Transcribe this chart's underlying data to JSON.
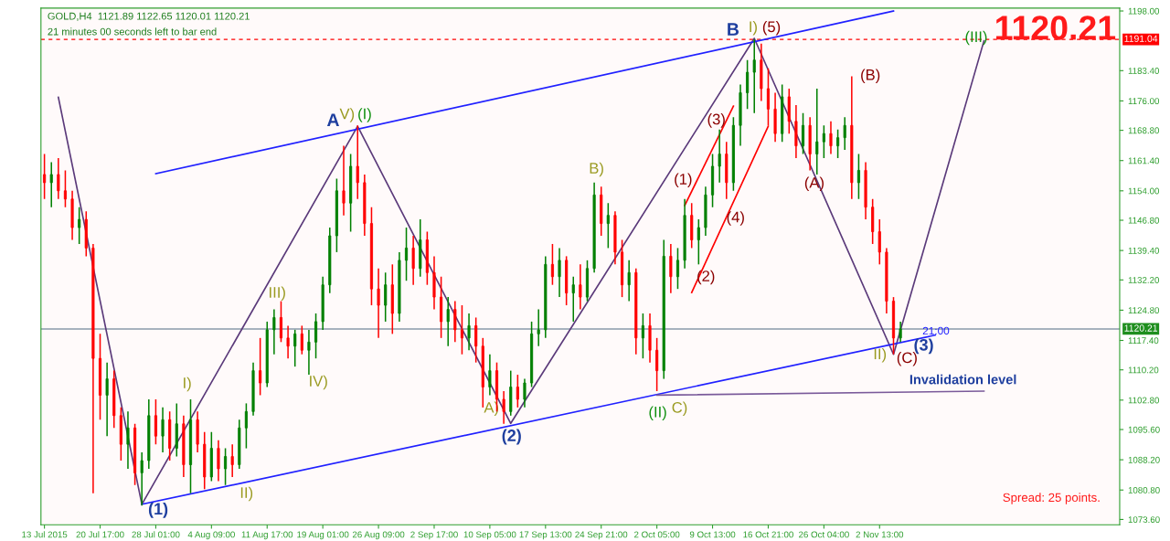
{
  "chart_data": {
    "type": "candlestick",
    "title": "GOLD,H4  1121.89 1122.65 1120.01 1120.21",
    "subtitle": "21 minutes 00 seconds left to bar end",
    "categories": [
      "13 Jul 2015",
      null,
      null,
      null,
      null,
      null,
      null,
      null,
      "20 Jul 17:00",
      null,
      null,
      null,
      null,
      null,
      null,
      null,
      "28 Jul 01:00",
      null,
      null,
      null,
      null,
      null,
      null,
      null,
      "4 Aug 09:00",
      null,
      null,
      null,
      null,
      null,
      null,
      null,
      "11 Aug 17:00",
      null,
      null,
      null,
      null,
      null,
      null,
      null,
      "19 Aug 01:00",
      null,
      null,
      null,
      null,
      null,
      null,
      null,
      "26 Aug 09:00",
      null,
      null,
      null,
      null,
      null,
      null,
      null,
      "2 Sep 17:00",
      null,
      null,
      null,
      null,
      null,
      null,
      null,
      "10 Sep 05:00",
      null,
      null,
      null,
      null,
      null,
      null,
      null,
      "17 Sep 13:00",
      null,
      null,
      null,
      null,
      null,
      null,
      null,
      "24 Sep 21:00",
      null,
      null,
      null,
      null,
      null,
      null,
      null,
      "2 Oct 05:00",
      null,
      null,
      null,
      null,
      null,
      null,
      null,
      "9 Oct 13:00",
      null,
      null,
      null,
      null,
      null,
      null,
      null,
      "16 Oct 21:00",
      null,
      null,
      null,
      null,
      null,
      null,
      null,
      "26 Oct 04:00",
      null,
      null,
      null,
      null,
      null,
      null,
      null,
      "2 Nov 13:00",
      null,
      null,
      null,
      null,
      null,
      null,
      null,
      null,
      null,
      null,
      null,
      null,
      null,
      null,
      null,
      null,
      null,
      null,
      null,
      null,
      null,
      null,
      null,
      null,
      null,
      null,
      null,
      null,
      null,
      null,
      null,
      null,
      null,
      null
    ],
    "ylim": [
      1072.3,
      1198.7
    ],
    "yticks": [
      {
        "value": 1073.6,
        "label": "1073.60"
      },
      {
        "value": 1080.8,
        "label": "1080.80"
      },
      {
        "value": 1088.2,
        "label": "1088.20"
      },
      {
        "value": 1095.6,
        "label": "1095.60"
      },
      {
        "value": 1102.8,
        "label": "1102.80"
      },
      {
        "value": 1110.2,
        "label": "1110.20"
      },
      {
        "value": 1117.4,
        "label": "1117.40"
      },
      {
        "value": 1124.8,
        "label": "1124.80"
      },
      {
        "value": 1132.2,
        "label": "1132.20"
      },
      {
        "value": 1139.4,
        "label": "1139.40"
      },
      {
        "value": 1146.8,
        "label": "1146.80"
      },
      {
        "value": 1154.0,
        "label": "1154.00"
      },
      {
        "value": 1161.4,
        "label": "1161.40"
      },
      {
        "value": 1168.8,
        "label": "1168.80"
      },
      {
        "value": 1176.0,
        "label": "1176.00"
      },
      {
        "value": 1183.4,
        "label": "1183.40"
      },
      {
        "value": 1198.0,
        "label": "1198.00"
      }
    ],
    "series": [
      {
        "ohlc": [
          [
            1158,
            1163,
            1152,
            1156
          ],
          [
            1156,
            1161,
            1150,
            1158
          ],
          [
            1158,
            1162,
            1152,
            1154
          ],
          [
            1154,
            1159,
            1150,
            1152
          ],
          [
            1152,
            1154,
            1142,
            1145
          ],
          [
            1145,
            1150,
            1141,
            1147
          ],
          [
            1147,
            1149,
            1138,
            1140
          ],
          [
            1140,
            1141,
            1080,
            1113
          ],
          [
            1113,
            1119,
            1098,
            1104
          ],
          [
            1104,
            1112,
            1094,
            1108
          ],
          [
            1108,
            1110,
            1096,
            1099
          ],
          [
            1099,
            1101,
            1088,
            1092
          ],
          [
            1092,
            1100,
            1086,
            1096
          ],
          [
            1096,
            1097,
            1082,
            1085
          ],
          [
            1085,
            1090,
            1077,
            1088
          ],
          [
            1088,
            1103,
            1086,
            1099
          ],
          [
            1099,
            1103,
            1092,
            1094
          ],
          [
            1094,
            1101,
            1090,
            1098
          ],
          [
            1098,
            1100,
            1088,
            1091
          ],
          [
            1091,
            1102,
            1089,
            1097
          ],
          [
            1097,
            1099,
            1084,
            1087
          ],
          [
            1087,
            1103,
            1080,
            1098
          ],
          [
            1098,
            1100,
            1090,
            1092
          ],
          [
            1092,
            1095,
            1081,
            1084
          ],
          [
            1084,
            1095,
            1083,
            1091
          ],
          [
            1091,
            1093,
            1083,
            1086
          ],
          [
            1086,
            1091,
            1082,
            1089
          ],
          [
            1089,
            1092,
            1084,
            1087
          ],
          [
            1087,
            1098,
            1086,
            1096
          ],
          [
            1096,
            1102,
            1091,
            1100
          ],
          [
            1100,
            1112,
            1099,
            1110
          ],
          [
            1110,
            1118,
            1104,
            1107
          ],
          [
            1107,
            1122,
            1106,
            1120
          ],
          [
            1120,
            1125,
            1114,
            1123
          ],
          [
            1123,
            1127,
            1117,
            1118
          ],
          [
            1118,
            1121,
            1113,
            1116
          ],
          [
            1116,
            1120,
            1111,
            1119
          ],
          [
            1119,
            1121,
            1114,
            1115
          ],
          [
            1115,
            1120,
            1109,
            1117
          ],
          [
            1117,
            1124,
            1113,
            1122
          ],
          [
            1122,
            1133,
            1120,
            1131
          ],
          [
            1131,
            1145,
            1129,
            1143
          ],
          [
            1143,
            1157,
            1139,
            1154
          ],
          [
            1154,
            1165,
            1148,
            1151
          ],
          [
            1151,
            1163,
            1144,
            1160
          ],
          [
            1160,
            1170,
            1152,
            1156
          ],
          [
            1156,
            1158,
            1143,
            1146
          ],
          [
            1146,
            1150,
            1126,
            1130
          ],
          [
            1130,
            1135,
            1118,
            1126
          ],
          [
            1126,
            1134,
            1122,
            1131
          ],
          [
            1131,
            1136,
            1119,
            1124
          ],
          [
            1124,
            1139,
            1122,
            1137
          ],
          [
            1137,
            1145,
            1132,
            1140
          ],
          [
            1140,
            1143,
            1131,
            1135
          ],
          [
            1135,
            1147,
            1133,
            1142
          ],
          [
            1142,
            1144,
            1131,
            1134
          ],
          [
            1134,
            1138,
            1125,
            1128
          ],
          [
            1128,
            1133,
            1118,
            1122
          ],
          [
            1122,
            1128,
            1116,
            1125
          ],
          [
            1125,
            1127,
            1117,
            1120
          ],
          [
            1120,
            1126,
            1114,
            1118
          ],
          [
            1118,
            1124,
            1115,
            1121
          ],
          [
            1121,
            1123,
            1112,
            1116
          ],
          [
            1116,
            1118,
            1101,
            1106
          ],
          [
            1106,
            1114,
            1104,
            1110
          ],
          [
            1110,
            1112,
            1100,
            1103
          ],
          [
            1103,
            1105,
            1097,
            1100
          ],
          [
            1100,
            1110,
            1099,
            1106
          ],
          [
            1106,
            1109,
            1101,
            1103
          ],
          [
            1103,
            1108,
            1101,
            1107
          ],
          [
            1107,
            1122,
            1106,
            1119
          ],
          [
            1119,
            1125,
            1116,
            1120
          ],
          [
            1120,
            1138,
            1118,
            1136
          ],
          [
            1136,
            1141,
            1131,
            1133
          ],
          [
            1133,
            1140,
            1128,
            1137
          ],
          [
            1137,
            1138,
            1126,
            1129
          ],
          [
            1129,
            1133,
            1122,
            1131
          ],
          [
            1131,
            1136,
            1125,
            1128
          ],
          [
            1128,
            1137,
            1127,
            1135
          ],
          [
            1135,
            1156,
            1134,
            1153
          ],
          [
            1153,
            1155,
            1143,
            1146
          ],
          [
            1146,
            1151,
            1140,
            1148
          ],
          [
            1148,
            1149,
            1136,
            1139
          ],
          [
            1139,
            1142,
            1128,
            1131
          ],
          [
            1131,
            1137,
            1127,
            1134
          ],
          [
            1134,
            1135,
            1114,
            1118
          ],
          [
            1118,
            1124,
            1113,
            1121
          ],
          [
            1121,
            1124,
            1112,
            1115
          ],
          [
            1115,
            1118,
            1105,
            1110
          ],
          [
            1110,
            1142,
            1108,
            1138
          ],
          [
            1138,
            1141,
            1129,
            1133
          ],
          [
            1133,
            1140,
            1130,
            1137
          ],
          [
            1137,
            1152,
            1135,
            1148
          ],
          [
            1148,
            1151,
            1140,
            1142
          ],
          [
            1142,
            1147,
            1136,
            1145
          ],
          [
            1145,
            1155,
            1143,
            1153
          ],
          [
            1153,
            1163,
            1150,
            1160
          ],
          [
            1160,
            1169,
            1156,
            1163
          ],
          [
            1163,
            1166,
            1152,
            1156
          ],
          [
            1156,
            1172,
            1154,
            1170
          ],
          [
            1170,
            1180,
            1165,
            1178
          ],
          [
            1178,
            1186,
            1174,
            1183
          ],
          [
            1183,
            1191,
            1173,
            1186
          ],
          [
            1186,
            1190,
            1176,
            1179
          ],
          [
            1179,
            1184,
            1170,
            1174
          ],
          [
            1174,
            1178,
            1166,
            1168
          ],
          [
            1168,
            1180,
            1166,
            1177
          ],
          [
            1177,
            1179,
            1168,
            1171
          ],
          [
            1171,
            1175,
            1162,
            1165
          ],
          [
            1165,
            1173,
            1163,
            1170
          ],
          [
            1170,
            1172,
            1159,
            1163
          ],
          [
            1163,
            1179,
            1158,
            1166
          ],
          [
            1166,
            1170,
            1162,
            1168
          ],
          [
            1168,
            1171,
            1163,
            1165
          ],
          [
            1165,
            1169,
            1162,
            1167
          ],
          [
            1167,
            1172,
            1164,
            1170
          ],
          [
            1170,
            1182,
            1152,
            1156
          ],
          [
            1156,
            1163,
            1152,
            1159
          ],
          [
            1159,
            1161,
            1147,
            1150
          ],
          [
            1150,
            1152,
            1141,
            1144
          ],
          [
            1144,
            1147,
            1136,
            1139
          ],
          [
            1139,
            1140,
            1124,
            1127
          ],
          [
            1127,
            1128,
            1114,
            1118
          ],
          [
            1118,
            1122,
            1117,
            1120.21
          ],
          null,
          null,
          null,
          null,
          null,
          null,
          null,
          null,
          null,
          null,
          null,
          null,
          null,
          null,
          null,
          null,
          null,
          null,
          null,
          null,
          null,
          null,
          null,
          null,
          null,
          null,
          null,
          null,
          null,
          null,
          null
        ],
        "colors": [
          "#ff0000",
          "#008000",
          "#ff0000",
          "#ff0000",
          "#ff0000",
          "#008000",
          "#ff0000",
          "#ff0000",
          "#ff0000",
          "#008000",
          "#ff0000",
          "#ff0000",
          "#008000",
          "#ff0000",
          "#008000",
          "#008000",
          "#ff0000",
          "#008000",
          "#ff0000",
          "#008000",
          "#ff0000",
          "#008000",
          "#ff0000",
          "#ff0000",
          "#008000",
          "#ff0000",
          "#008000",
          "#ff0000",
          "#008000",
          "#008000",
          "#008000",
          "#ff0000",
          "#008000",
          "#008000",
          "#ff0000",
          "#ff0000",
          "#008000",
          "#ff0000",
          "#008000",
          "#008000",
          "#008000",
          "#008000",
          "#008000",
          "#ff0000",
          "#008000",
          "#ff0000",
          "#ff0000",
          "#ff0000",
          "#ff0000",
          "#008000",
          "#ff0000",
          "#008000",
          "#008000",
          "#ff0000",
          "#008000",
          "#ff0000",
          "#ff0000",
          "#ff0000",
          "#008000",
          "#ff0000",
          "#ff0000",
          "#008000",
          "#ff0000",
          "#ff0000",
          "#008000",
          "#ff0000",
          "#ff0000",
          "#008000",
          "#ff0000",
          "#008000",
          "#008000",
          "#008000",
          "#008000",
          "#ff0000",
          "#008000",
          "#ff0000",
          "#008000",
          "#ff0000",
          "#008000",
          "#008000",
          "#ff0000",
          "#008000",
          "#ff0000",
          "#ff0000",
          "#008000",
          "#ff0000",
          "#008000",
          "#ff0000",
          "#ff0000",
          "#008000",
          "#ff0000",
          "#008000",
          "#008000",
          "#ff0000",
          "#008000",
          "#008000",
          "#008000",
          "#008000",
          "#ff0000",
          "#008000",
          "#008000",
          "#008000",
          "#008000",
          "#ff0000",
          "#ff0000",
          "#ff0000",
          "#008000",
          "#ff0000",
          "#ff0000",
          "#008000",
          "#ff0000",
          "#008000",
          "#008000",
          "#ff0000",
          "#008000",
          "#008000",
          "#ff0000",
          "#008000",
          "#ff0000",
          "#ff0000",
          "#ff0000",
          "#ff0000",
          "#ff0000",
          "#008000",
          null,
          null,
          null,
          null,
          null,
          null,
          null,
          null,
          null,
          null,
          null,
          null,
          null,
          null,
          null,
          null,
          null,
          null,
          null,
          null,
          null,
          null,
          null,
          null,
          null,
          null,
          null,
          null,
          null,
          null,
          null
        ]
      },
      {
        "type": "line",
        "color": "#5b3a7a",
        "values": [
          null,
          null,
          1176.9,
          null,
          null,
          null,
          null,
          null,
          null,
          null,
          null,
          null,
          null,
          null,
          1077.3,
          null,
          null,
          null,
          null,
          null,
          null,
          null,
          null,
          null,
          null,
          null,
          null,
          null,
          null,
          null,
          null,
          null,
          null,
          null,
          null,
          null,
          null,
          null,
          null,
          null,
          null,
          null,
          null,
          null,
          null,
          1169.8,
          null,
          null,
          null,
          null,
          null,
          null,
          null,
          null,
          null,
          null,
          null,
          null,
          null,
          null,
          null,
          null,
          null,
          null,
          null,
          null,
          null,
          1097.1,
          null,
          null,
          null,
          null,
          null,
          null,
          null,
          null,
          null,
          null,
          null,
          null,
          null,
          null,
          null,
          null,
          null,
          null,
          null,
          null,
          null,
          null,
          null,
          null,
          null,
          null,
          null,
          null,
          null,
          null,
          null,
          null,
          null,
          null,
          1191.3,
          null,
          null,
          null,
          null,
          null,
          null,
          null,
          null,
          null,
          null,
          null,
          null,
          null,
          null,
          null,
          null,
          null,
          null,
          null,
          1114.0,
          null,
          null,
          null,
          null,
          null,
          null,
          null,
          null,
          null,
          null,
          null,
          null,
          1190.7,
          null,
          null,
          null,
          null,
          null,
          null,
          null,
          null,
          null,
          null,
          null,
          null,
          null,
          null,
          null,
          null,
          null,
          null,
          null
        ]
      },
      {
        "type": "line",
        "color": "#2020ff",
        "values": [
          null,
          null,
          null,
          null,
          null,
          null,
          null,
          null,
          null,
          null,
          null,
          null,
          null,
          null,
          null,
          null,
          1158.2,
          null,
          null,
          null,
          null,
          null,
          null,
          null,
          null,
          null,
          null,
          null,
          null,
          null,
          null,
          null,
          null,
          null,
          null,
          null,
          null,
          null,
          null,
          null,
          null,
          null,
          null,
          null,
          null,
          null,
          null,
          null,
          null,
          null,
          null,
          null,
          null,
          null,
          null,
          null,
          null,
          null,
          null,
          null,
          null,
          null,
          null,
          null,
          null,
          null,
          null,
          null,
          null,
          null,
          null,
          null,
          null,
          null,
          null,
          null,
          null,
          null,
          null,
          null,
          null,
          null,
          null,
          null,
          null,
          null,
          null,
          null,
          null,
          null,
          null,
          null,
          null,
          null,
          null,
          null,
          null,
          null,
          null,
          null,
          null,
          null,
          null,
          null,
          null,
          null,
          null,
          null,
          null,
          null,
          null,
          null,
          null,
          null,
          null,
          null,
          null,
          null,
          null,
          null,
          null,
          null,
          1198.0,
          null,
          null,
          null,
          null,
          null,
          null,
          null,
          null,
          null,
          null,
          null,
          null,
          null,
          null,
          null,
          null,
          null,
          null,
          null,
          null,
          null,
          null,
          null,
          null,
          null,
          null,
          null,
          null,
          null,
          null,
          null,
          null
        ]
      },
      {
        "type": "line",
        "color": "#2020ff",
        "values": [
          null,
          null,
          null,
          null,
          null,
          null,
          null,
          null,
          null,
          null,
          null,
          null,
          null,
          null,
          1077.3,
          null,
          null,
          null,
          null,
          null,
          null,
          null,
          null,
          null,
          null,
          null,
          null,
          null,
          null,
          null,
          null,
          null,
          null,
          null,
          null,
          null,
          null,
          null,
          null,
          null,
          null,
          null,
          null,
          null,
          null,
          null,
          null,
          null,
          null,
          null,
          null,
          null,
          null,
          null,
          null,
          null,
          null,
          null,
          null,
          null,
          null,
          null,
          null,
          null,
          null,
          null,
          null,
          null,
          null,
          null,
          null,
          null,
          null,
          null,
          null,
          null,
          null,
          null,
          null,
          null,
          null,
          null,
          null,
          null,
          null,
          null,
          null,
          null,
          null,
          null,
          null,
          null,
          null,
          null,
          null,
          null,
          null,
          null,
          null,
          null,
          null,
          null,
          null,
          null,
          null,
          null,
          null,
          null,
          null,
          null,
          null,
          null,
          null,
          null,
          null,
          null,
          null,
          null,
          null,
          null,
          null,
          null,
          null,
          null,
          null,
          null,
          null,
          null,
          1118.7,
          null,
          null,
          null,
          null,
          null,
          null,
          null,
          null,
          null,
          null,
          null,
          null,
          null,
          null,
          null,
          null,
          null,
          null,
          null,
          null,
          null,
          null,
          null,
          null,
          null,
          null
        ]
      },
      {
        "type": "line",
        "color": "#ff0000",
        "values": [
          null,
          null,
          null,
          null,
          null,
          null,
          null,
          null,
          null,
          null,
          null,
          null,
          null,
          null,
          null,
          null,
          null,
          null,
          null,
          null,
          null,
          null,
          null,
          null,
          null,
          null,
          null,
          null,
          null,
          null,
          null,
          null,
          null,
          null,
          null,
          null,
          null,
          null,
          null,
          null,
          null,
          null,
          null,
          null,
          null,
          null,
          null,
          null,
          null,
          null,
          null,
          null,
          null,
          null,
          null,
          null,
          null,
          null,
          null,
          null,
          null,
          null,
          null,
          null,
          null,
          null,
          null,
          null,
          null,
          null,
          null,
          null,
          null,
          null,
          null,
          null,
          null,
          null,
          null,
          null,
          null,
          null,
          null,
          null,
          null,
          null,
          null,
          null,
          null,
          null,
          null,
          null,
          1150.4,
          null,
          null,
          null,
          null,
          null,
          null,
          1174.7,
          null,
          null,
          null,
          null,
          null,
          null,
          null,
          null,
          null,
          null,
          null,
          null,
          null,
          null,
          null,
          null,
          null,
          null,
          null,
          null,
          null,
          null,
          null,
          null,
          null,
          null,
          null,
          null,
          null,
          null,
          null,
          null,
          null,
          null,
          null,
          null,
          null,
          null,
          null,
          null,
          null,
          null,
          null,
          null,
          null,
          null,
          null,
          null,
          null,
          null,
          null,
          null,
          null,
          null,
          null
        ]
      },
      {
        "type": "line",
        "color": "#ff0000",
        "values": [
          null,
          null,
          null,
          null,
          null,
          null,
          null,
          null,
          null,
          null,
          null,
          null,
          null,
          null,
          null,
          null,
          null,
          null,
          null,
          null,
          null,
          null,
          null,
          null,
          null,
          null,
          null,
          null,
          null,
          null,
          null,
          null,
          null,
          null,
          null,
          null,
          null,
          null,
          null,
          null,
          null,
          null,
          null,
          null,
          null,
          null,
          null,
          null,
          null,
          null,
          null,
          null,
          null,
          null,
          null,
          null,
          null,
          null,
          null,
          null,
          null,
          null,
          null,
          null,
          null,
          null,
          null,
          null,
          null,
          null,
          null,
          null,
          null,
          null,
          null,
          null,
          null,
          null,
          null,
          null,
          null,
          null,
          null,
          null,
          null,
          null,
          null,
          null,
          null,
          null,
          null,
          null,
          null,
          1129.1,
          null,
          null,
          null,
          null,
          null,
          null,
          null,
          null,
          null,
          null,
          1169.8,
          null,
          null,
          null,
          null,
          null,
          null,
          null,
          null,
          null,
          null,
          null,
          null,
          null,
          null,
          null,
          null,
          null,
          null,
          null,
          null,
          null,
          null,
          null,
          null,
          null,
          null,
          null,
          null,
          null,
          null,
          null,
          null,
          null,
          null,
          null,
          null,
          null,
          null,
          null,
          null,
          null,
          null,
          null,
          null,
          null,
          null,
          null,
          null,
          null,
          null
        ]
      },
      {
        "type": "line",
        "color": "#7a5a9a",
        "values": [
          null,
          null,
          null,
          null,
          null,
          null,
          null,
          null,
          null,
          null,
          null,
          null,
          null,
          null,
          null,
          null,
          null,
          null,
          null,
          null,
          null,
          null,
          null,
          null,
          null,
          null,
          null,
          null,
          null,
          null,
          null,
          null,
          null,
          null,
          null,
          null,
          null,
          null,
          null,
          null,
          null,
          null,
          null,
          null,
          null,
          null,
          null,
          null,
          null,
          null,
          null,
          null,
          null,
          null,
          null,
          null,
          null,
          null,
          null,
          null,
          null,
          null,
          null,
          null,
          null,
          null,
          null,
          null,
          null,
          null,
          null,
          null,
          null,
          null,
          null,
          null,
          null,
          null,
          null,
          null,
          null,
          null,
          null,
          null,
          null,
          null,
          null,
          null,
          1104.0,
          null,
          null,
          null,
          null,
          null,
          null,
          null,
          null,
          null,
          null,
          null,
          null,
          null,
          null,
          null,
          null,
          null,
          null,
          null,
          null,
          null,
          null,
          null,
          null,
          null,
          null,
          null,
          null,
          null,
          null,
          null,
          null,
          null,
          null,
          null,
          null,
          null,
          null,
          null,
          null,
          null,
          null,
          null,
          null,
          null,
          null,
          1105.0,
          null,
          null,
          null,
          null,
          null,
          null,
          null,
          null,
          null,
          null,
          null,
          null,
          null,
          null,
          null,
          null,
          null,
          null,
          null
        ]
      }
    ],
    "ref_lines": [
      {
        "axis": "y",
        "value": 1191.04,
        "label": "1191.04",
        "color": "#ff0000",
        "line_style": "dashed"
      },
      {
        "axis": "y",
        "value": 1120.21,
        "label": "1120.21",
        "color": "#8a9aaa",
        "line_style": "solid"
      }
    ],
    "annotations": [
      "1120.21",
      "Spread: 25 points.",
      "A",
      "V)",
      "(I)",
      "B",
      "I)",
      "(5)",
      "(III)",
      "III)",
      "I)",
      "II)",
      "IV)",
      "A)",
      "B)",
      "C)",
      "II)",
      "(II)",
      "(1)",
      "(2)",
      "(3)",
      "(3)",
      "(1)",
      "(2)",
      "(4)",
      "(A)",
      "(B)",
      "(C)",
      "Invalidation level",
      "21:00"
    ]
  }
}
